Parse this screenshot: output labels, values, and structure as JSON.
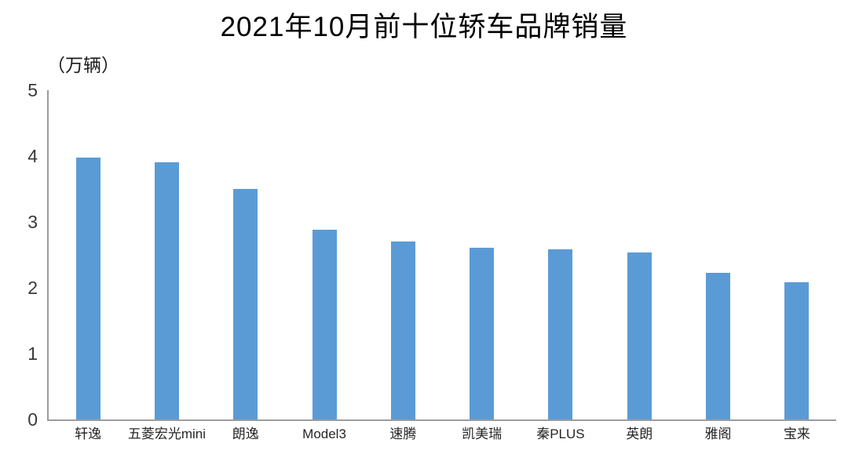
{
  "chart_data": {
    "type": "bar",
    "title": "2021年10月前十位轿车品牌销量",
    "unit_label": "（万辆）",
    "categories": [
      "轩逸",
      "五菱宏光mini",
      "朗逸",
      "Model3",
      "速腾",
      "凯美瑞",
      "秦PLUS",
      "英朗",
      "雅阁",
      "宝来"
    ],
    "values": [
      3.98,
      3.91,
      3.5,
      2.88,
      2.7,
      2.61,
      2.58,
      2.54,
      2.23,
      2.08
    ],
    "xlabel": "",
    "ylabel": "（万辆）",
    "ylim": [
      0,
      5
    ],
    "yticks": [
      "0",
      "1",
      "2",
      "3",
      "4",
      "5"
    ],
    "grid": false,
    "legend_position": "none",
    "bar_color": "#5B9BD5",
    "axis_color": "#9d9d9d"
  }
}
